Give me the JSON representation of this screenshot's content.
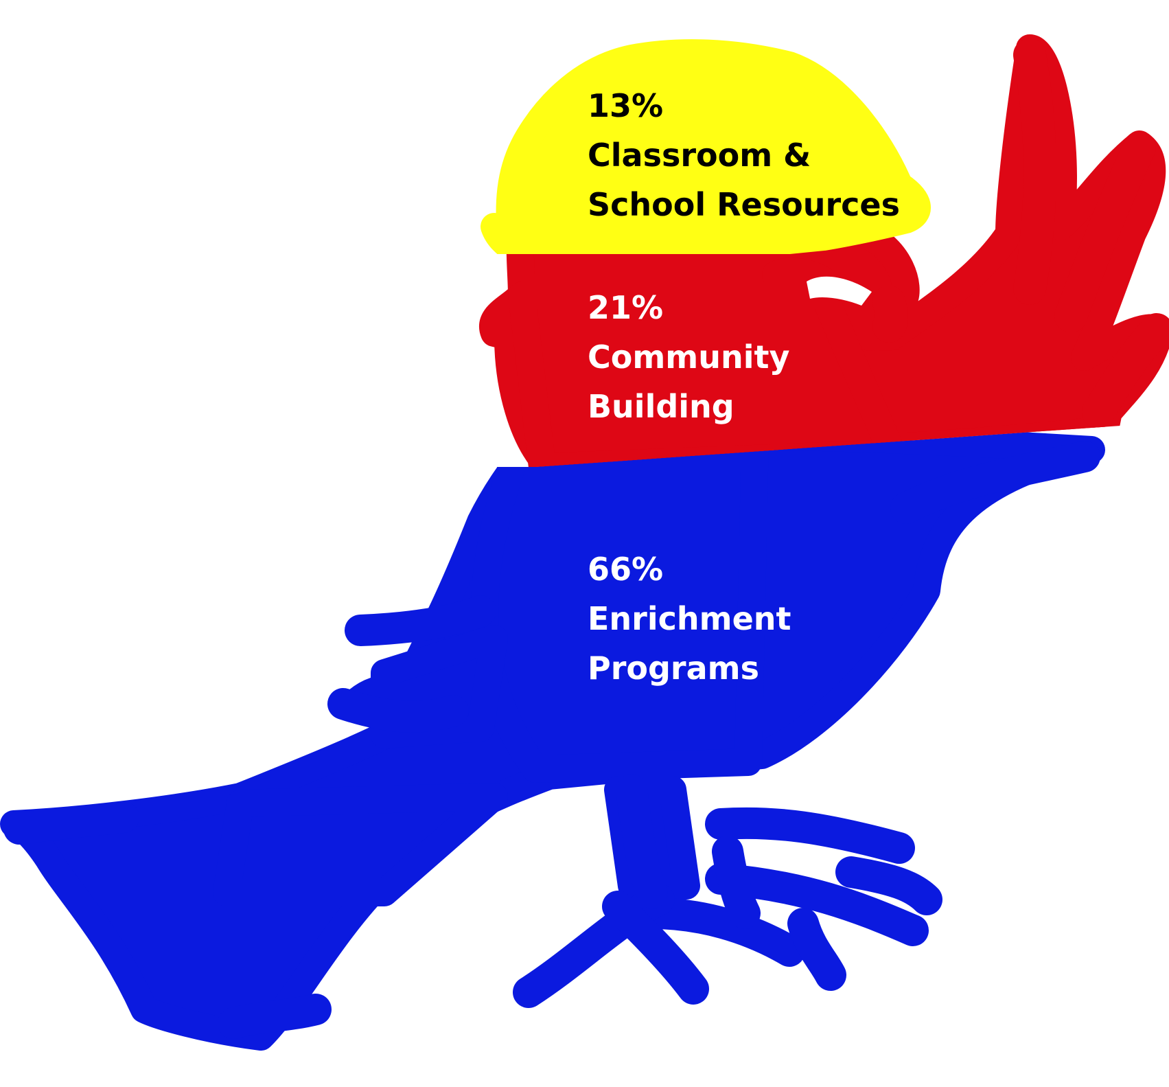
{
  "chart_data": {
    "type": "pie",
    "title": "",
    "segments": [
      {
        "label_lines": [
          "Classroom &",
          "School Resources"
        ],
        "value": 13,
        "value_text": "13%",
        "color": "#FFFF14",
        "text_color": "#000000"
      },
      {
        "label_lines": [
          "Community",
          "Building"
        ],
        "value": 21,
        "value_text": "21%",
        "color": "#DE0715",
        "text_color": "#FFFFFF"
      },
      {
        "label_lines": [
          "Enrichment",
          "Programs"
        ],
        "value": 66,
        "value_text": "66%",
        "color": "#0B1ADF",
        "text_color": "#FFFFFF"
      }
    ]
  }
}
